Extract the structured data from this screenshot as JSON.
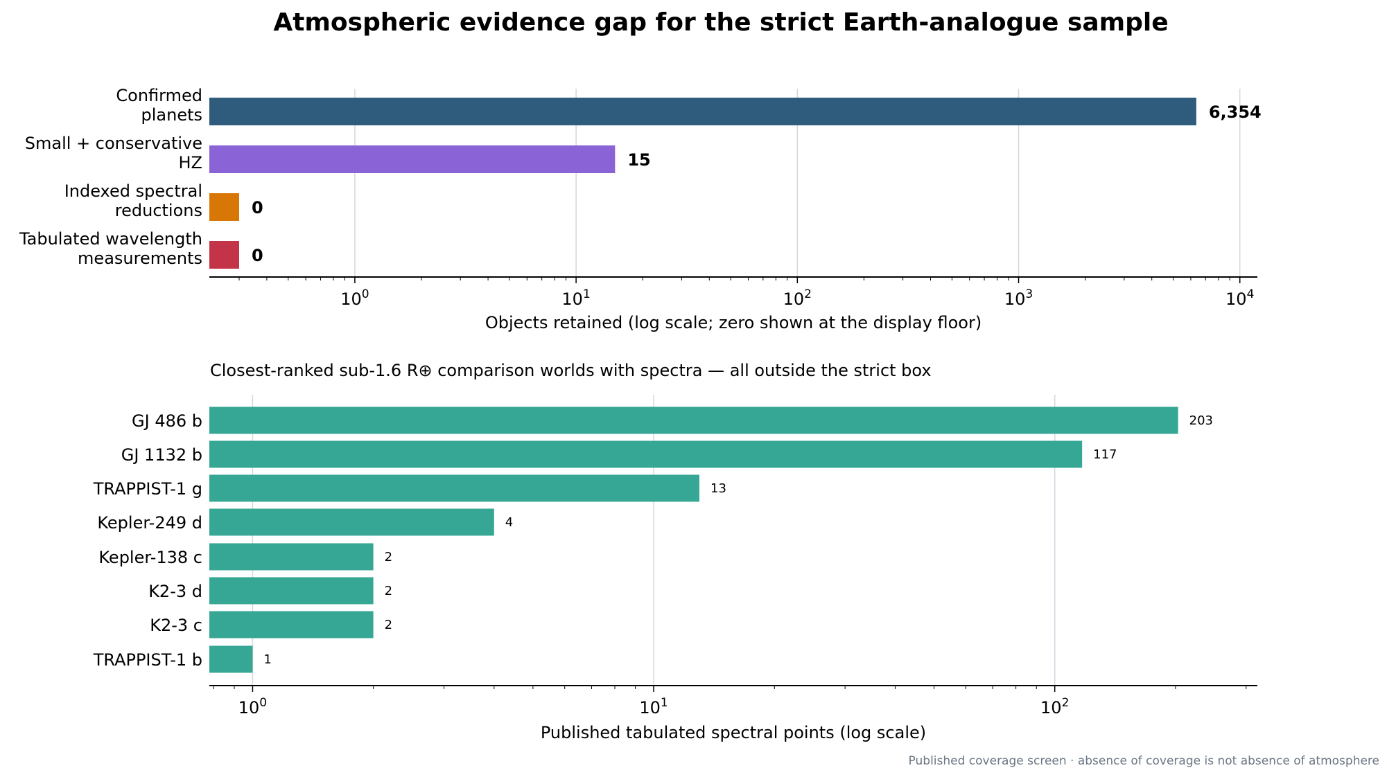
{
  "title": "Atmospheric evidence gap for the strict Earth-analogue sample",
  "footnote": "Published coverage screen · absence of coverage is not absence of atmosphere",
  "chart_data": [
    {
      "type": "bar",
      "orientation": "horizontal",
      "title": "",
      "xlabel": "Objects retained (log scale; zero shown at the display floor)",
      "ylabel": "",
      "xscale": "log",
      "xlim": [
        0.22,
        12000
      ],
      "grid": "vertical",
      "categories": [
        [
          "Confirmed",
          "planets"
        ],
        [
          "Small + conservative",
          "HZ"
        ],
        [
          "Indexed spectral",
          "reductions"
        ],
        [
          "Tabulated wavelength",
          "measurements"
        ]
      ],
      "values": [
        6354,
        15,
        0,
        0
      ],
      "value_labels": [
        "6,354",
        "15",
        "0",
        "0"
      ],
      "display_floor": 0.3,
      "colors": [
        "#2f5b7c",
        "#8a63d6",
        "#d97706",
        "#c43448"
      ],
      "xticks": [
        1,
        10,
        100,
        1000,
        10000
      ],
      "xtick_labels": [
        "0",
        "1",
        "2",
        "3",
        "4"
      ]
    },
    {
      "type": "bar",
      "orientation": "horizontal",
      "title": "Closest-ranked sub-1.6 R⊕ comparison worlds with spectra — all outside the strict box",
      "xlabel": "Published tabulated spectral points (log scale)",
      "ylabel": "",
      "xscale": "log",
      "xlim": [
        0.78,
        320
      ],
      "grid": "vertical",
      "categories": [
        "GJ 486 b",
        "GJ 1132 b",
        "TRAPPIST-1 g",
        "Kepler-249 d",
        "Kepler-138 c",
        "K2-3 d",
        "K2-3 c",
        "TRAPPIST-1 b"
      ],
      "values": [
        203,
        117,
        13,
        4,
        2,
        2,
        2,
        1
      ],
      "value_labels": [
        "203",
        "117",
        "13",
        "4",
        "2",
        "2",
        "2",
        "1"
      ],
      "color": "#36a794",
      "xticks": [
        1,
        10,
        100
      ],
      "xtick_labels": [
        "0",
        "1",
        "2"
      ]
    }
  ]
}
